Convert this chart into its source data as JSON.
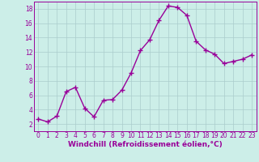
{
  "x": [
    0,
    1,
    2,
    3,
    4,
    5,
    6,
    7,
    8,
    9,
    10,
    11,
    12,
    13,
    14,
    15,
    16,
    17,
    18,
    19,
    20,
    21,
    22,
    23
  ],
  "y": [
    2.7,
    2.3,
    3.1,
    6.5,
    7.1,
    4.2,
    3.0,
    5.3,
    5.4,
    6.7,
    9.1,
    12.2,
    13.7,
    16.4,
    18.4,
    18.2,
    17.1,
    13.5,
    12.3,
    11.7,
    10.4,
    10.7,
    11.0,
    11.6
  ],
  "line_color": "#990099",
  "marker": "+",
  "marker_size": 4,
  "bg_color": "#cceee8",
  "grid_color": "#aacccc",
  "xlabel": "Windchill (Refroidissement éolien,°C)",
  "xlim": [
    -0.5,
    23.5
  ],
  "ylim": [
    1,
    19
  ],
  "yticks": [
    2,
    4,
    6,
    8,
    10,
    12,
    14,
    16,
    18
  ],
  "xticks": [
    0,
    1,
    2,
    3,
    4,
    5,
    6,
    7,
    8,
    9,
    10,
    11,
    12,
    13,
    14,
    15,
    16,
    17,
    18,
    19,
    20,
    21,
    22,
    23
  ],
  "xlabel_fontsize": 6.5,
  "tick_fontsize": 5.5,
  "line_width": 1.0,
  "marker_edge_width": 1.0
}
